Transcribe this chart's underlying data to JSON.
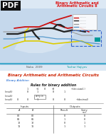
{
  "title_top1": "Binary Arithmetic and",
  "title_top2": "Arithmetic Circuits 8",
  "pdf_label": "PDF",
  "author_left": "Naba  2009",
  "author_right": "Tushar Hajiyev",
  "section_title": "Binary Arithmetic and Arithmetic Circuits",
  "subsection": "Binary Addition",
  "table_title": "Rules for binary addition",
  "bg_top": "#dde8f5",
  "map_bg": "#c5d8ec",
  "pdf_bg": "#111111",
  "pdf_text": "#ffffff",
  "title_red": "#dd1111",
  "author_left_color": "#555555",
  "author_right_color": "#009999",
  "section_color": "#cc2200",
  "subsection_color": "#0055cc",
  "bottom_bg": "#ffffff",
  "line_cyan": "#33aacc",
  "separator_color": "#44aacc"
}
